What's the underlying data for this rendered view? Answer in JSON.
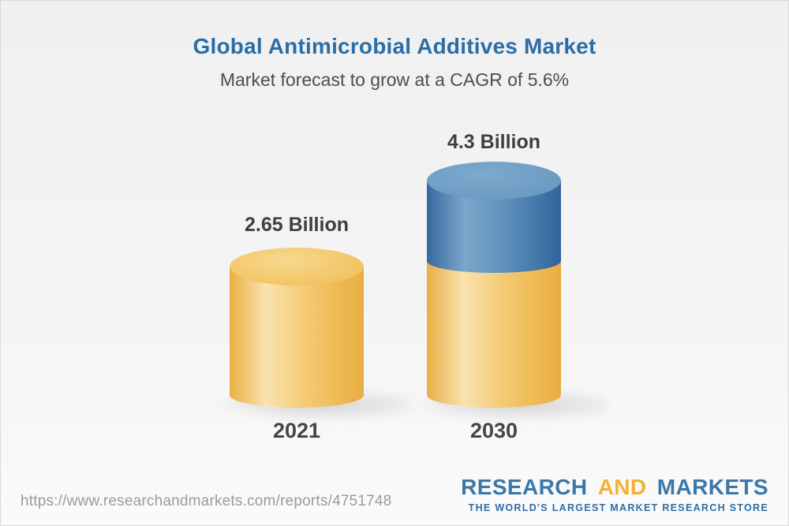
{
  "header": {
    "title": "Global Antimicrobial Additives Market",
    "subtitle": "Market forecast to grow at a CAGR of 5.6%"
  },
  "chart_data": {
    "type": "bar",
    "variant": "3d-cylinder",
    "categories": [
      "2021",
      "2030"
    ],
    "values": [
      2.65,
      4.3
    ],
    "value_labels": [
      "2.65 Billion",
      "4.3 Billion"
    ],
    "title": "Global Antimicrobial Additives Market",
    "subtitle": "Market forecast to grow at a CAGR of 5.6%",
    "cagr_pct": 5.6,
    "legend": false,
    "grid": false,
    "bar_segments": {
      "2021": [
        "yellow"
      ],
      "2030": [
        "yellow-base",
        "blue-growth"
      ]
    },
    "colors": {
      "bar_yellow": "#F3C768",
      "bar_blue": "#6E9DC4"
    }
  },
  "footer": {
    "url": "https://www.researchandmarkets.com/reports/4751748",
    "logo": {
      "research": "RESEARCH",
      "and": "AND",
      "markets": "MARKETS",
      "tagline": "THE WORLD'S LARGEST MARKET RESEARCH STORE"
    }
  },
  "colors": {
    "title_blue": "#2A6DA7",
    "subtitle_gray": "#4D4D4D",
    "label_gray": "#3E3E3E",
    "url_gray": "#9B9B9B",
    "logo_blue": "#3B77A9",
    "logo_gold": "#F2B233",
    "background_top": "#F0F0F1",
    "background_bottom": "#FAFAFA"
  }
}
